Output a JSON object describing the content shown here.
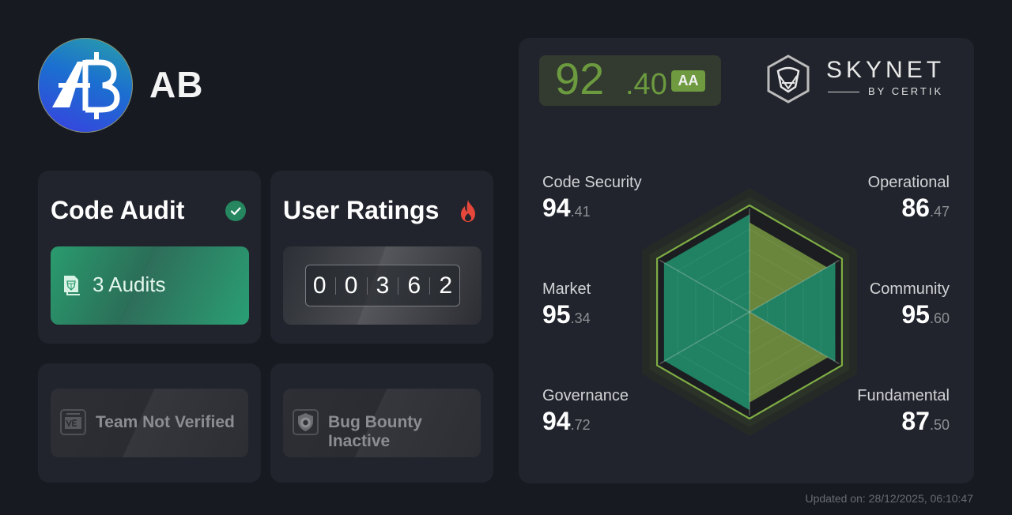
{
  "project": {
    "name": "AB",
    "logo_icon": "ab-coin-logo-icon"
  },
  "cards": {
    "code_audit": {
      "title": "Code Audit",
      "status_icon": "check-circle-icon",
      "status_color": "#25865f",
      "button_icon": "audit-document-icon",
      "button_label": "3 Audits",
      "audit_count": 3
    },
    "user_ratings": {
      "title": "User Ratings",
      "status_icon": "fire-icon",
      "status_color": "#e5473b",
      "digits": [
        "0",
        "0",
        "3",
        "6",
        "2"
      ]
    },
    "team": {
      "icon": "id-card-icon",
      "label": "Team Not Verified"
    },
    "bug_bounty": {
      "icon": "shield-bug-icon",
      "label": "Bug Bounty Inactive"
    }
  },
  "score": {
    "integer": "92",
    "decimal": ".40",
    "grade": "AA",
    "accent": "#6c9a3f"
  },
  "brand": {
    "icon": "skynet-hexagon-shield-icon",
    "name": "SKYNET",
    "sub": "BY CERTIK"
  },
  "metrics": [
    {
      "label": "Code Security",
      "int": "94",
      "dec": ".41"
    },
    {
      "label": "Operational",
      "int": "86",
      "dec": ".47"
    },
    {
      "label": "Market",
      "int": "95",
      "dec": ".34"
    },
    {
      "label": "Community",
      "int": "95",
      "dec": ".60"
    },
    {
      "label": "Governance",
      "int": "94",
      "dec": ".72"
    },
    {
      "label": "Fundamental",
      "int": "87",
      "dec": ".50"
    }
  ],
  "chart_data": {
    "type": "radar",
    "categories": [
      "Code Security",
      "Operational",
      "Community",
      "Fundamental",
      "Governance",
      "Market"
    ],
    "values": [
      94.41,
      86.47,
      95.6,
      87.5,
      94.72,
      95.34
    ],
    "range": [
      0,
      100
    ],
    "overall": 92.4,
    "grade": "AA",
    "colors": {
      "primary": "#218866",
      "secondary": "#6e8c3e",
      "outline": "#7fad45"
    }
  },
  "footer": {
    "updated": "Updated on: 28/12/2025, 06:10:47"
  }
}
